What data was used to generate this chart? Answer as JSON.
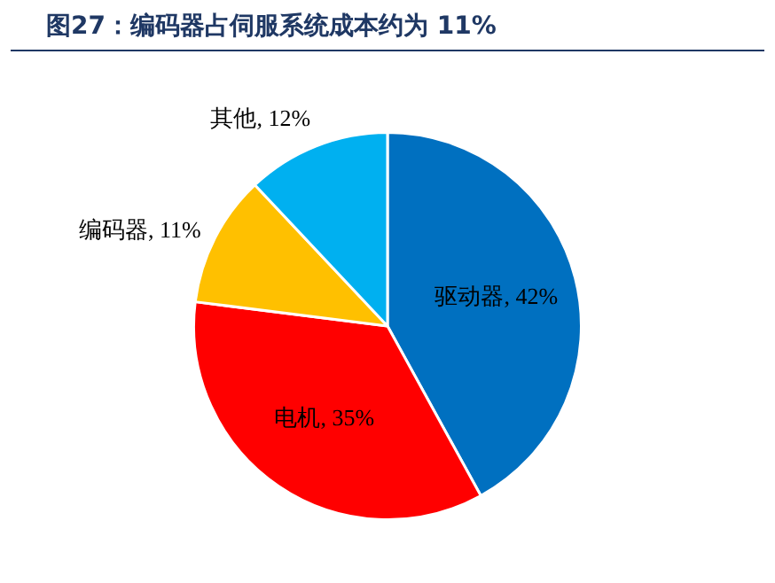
{
  "chart_data": {
    "type": "pie",
    "title": "图27：编码器占伺服系统成本约为 11%",
    "categories": [
      "驱动器",
      "电机",
      "编码器",
      "其他"
    ],
    "values": [
      42,
      35,
      11,
      12
    ],
    "value_labels": [
      "42%",
      "35%",
      "11%",
      "12%"
    ],
    "colors": [
      "#0070c0",
      "#ff0000",
      "#ffc000",
      "#00b0f0"
    ],
    "legend": false
  }
}
